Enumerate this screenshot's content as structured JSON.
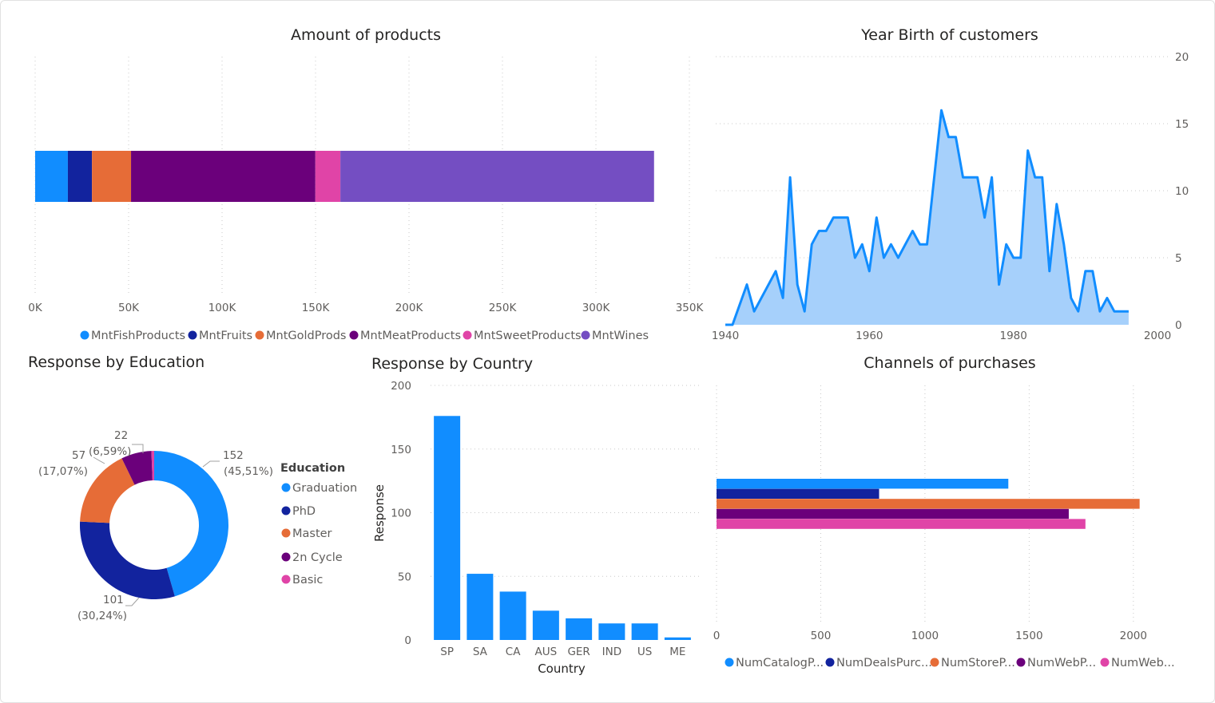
{
  "colors": {
    "blue": "#118dff",
    "navy": "#12239e",
    "orange": "#e66c37",
    "purple": "#6b007b",
    "pink": "#e044a7",
    "violet": "#744ec2",
    "area_fill": "#a6d0fb",
    "line": "#118dff"
  },
  "chart_data": [
    {
      "id": "amount-of-products",
      "type": "bar",
      "orientation": "horizontal-stacked",
      "title": "Amount of products",
      "series": [
        {
          "name": "MntFishProducts",
          "values": [
            17500
          ]
        },
        {
          "name": "MntFruits",
          "values": [
            12900
          ]
        },
        {
          "name": "MntGoldProds",
          "values": [
            20900
          ]
        },
        {
          "name": "MntMeatProducts",
          "values": [
            98600
          ]
        },
        {
          "name": "MntSweetProducts",
          "values": [
            13400
          ]
        },
        {
          "name": "MntWines",
          "values": [
            167800
          ]
        }
      ],
      "xlim": [
        0,
        350000
      ],
      "x_ticks": [
        0,
        50000,
        100000,
        150000,
        200000,
        250000,
        300000,
        350000
      ],
      "x_tick_labels": [
        "0K",
        "50K",
        "100K",
        "150K",
        "200K",
        "250K",
        "300K",
        "350K"
      ],
      "grid": true,
      "legend_position": "bottom"
    },
    {
      "id": "year-birth",
      "type": "area",
      "title": "Year Birth of customers",
      "x": [
        1940,
        1941,
        1943,
        1944,
        1947,
        1948,
        1949,
        1950,
        1951,
        1952,
        1953,
        1954,
        1955,
        1956,
        1957,
        1958,
        1959,
        1960,
        1961,
        1962,
        1963,
        1964,
        1965,
        1966,
        1967,
        1968,
        1969,
        1970,
        1971,
        1972,
        1973,
        1974,
        1975,
        1976,
        1977,
        1978,
        1979,
        1980,
        1981,
        1982,
        1983,
        1984,
        1985,
        1986,
        1987,
        1988,
        1989,
        1990,
        1991,
        1992,
        1993,
        1994,
        1995,
        1996
      ],
      "values": [
        0,
        0,
        3,
        1,
        4,
        2,
        11,
        3,
        1,
        6,
        7,
        7,
        8,
        8,
        8,
        5,
        6,
        4,
        8,
        5,
        6,
        5,
        6,
        7,
        6,
        6,
        11,
        16,
        14,
        14,
        11,
        11,
        11,
        8,
        11,
        3,
        6,
        5,
        5,
        13,
        11,
        11,
        4,
        9,
        6,
        2,
        1,
        4,
        4,
        1,
        2,
        1,
        1,
        1
      ],
      "xlim": [
        1940,
        2000
      ],
      "x_ticks": [
        1940,
        1960,
        1980,
        2000
      ],
      "ylim": [
        0,
        20
      ],
      "y_ticks": [
        0,
        5,
        10,
        15,
        20
      ],
      "y_axis_position": "right",
      "grid": true
    },
    {
      "id": "response-by-education",
      "type": "pie",
      "variant": "donut",
      "title": "Response by Education",
      "legend_title": "Education",
      "categories": [
        "Graduation",
        "PhD",
        "Master",
        "2n Cycle",
        "Basic"
      ],
      "values": [
        152,
        101,
        57,
        22,
        2
      ],
      "data_labels": [
        {
          "value": "152",
          "percent": "(45,51%)"
        },
        {
          "value": "101",
          "percent": "(30,24%)"
        },
        {
          "value": "57",
          "percent": "(17,07%)"
        },
        {
          "value": "22",
          "percent": "(6,59%)"
        }
      ],
      "legend_position": "right"
    },
    {
      "id": "response-by-country",
      "type": "bar",
      "title": "Response by Country",
      "categories": [
        "SP",
        "SA",
        "CA",
        "AUS",
        "GER",
        "IND",
        "US",
        "ME"
      ],
      "values": [
        176,
        52,
        38,
        23,
        17,
        13,
        13,
        2
      ],
      "xlabel": "Country",
      "ylabel": "Response",
      "ylim": [
        0,
        200
      ],
      "y_ticks": [
        0,
        50,
        100,
        150,
        200
      ],
      "grid": true
    },
    {
      "id": "channels-of-purchases",
      "type": "bar",
      "orientation": "horizontal-clustered",
      "title": "Channels of purchases",
      "series": [
        {
          "name": "NumCatalogP...",
          "values": [
            1400
          ]
        },
        {
          "name": "NumDealsPurc...",
          "values": [
            780
          ]
        },
        {
          "name": "NumStoreP...",
          "values": [
            2030
          ]
        },
        {
          "name": "NumWebP...",
          "values": [
            1690
          ]
        },
        {
          "name": "NumWeb...",
          "values": [
            1770
          ]
        }
      ],
      "xlim": [
        0,
        2200
      ],
      "x_ticks": [
        0,
        500,
        1000,
        1500,
        2000
      ],
      "grid": true,
      "legend_position": "bottom"
    }
  ]
}
